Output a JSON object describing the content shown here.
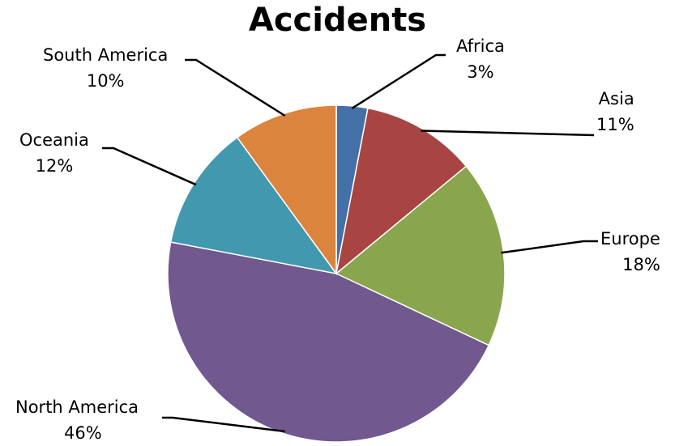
{
  "chart_data": {
    "type": "pie",
    "title": "Accidents",
    "slices": [
      {
        "label": "Africa",
        "value": 3,
        "value_label": "3%",
        "color": "#4470A8"
      },
      {
        "label": "Asia",
        "value": 11,
        "value_label": "11%",
        "color": "#A84442"
      },
      {
        "label": "Europe",
        "value": 18,
        "value_label": "18%",
        "color": "#89A54E"
      },
      {
        "label": "North America",
        "value": 46,
        "value_label": "46%",
        "color": "#71588F"
      },
      {
        "label": "Oceania",
        "value": 12,
        "value_label": "12%",
        "color": "#4198AF"
      },
      {
        "label": "South America",
        "value": 10,
        "value_label": "10%",
        "color": "#DB843D"
      }
    ],
    "legend": "none",
    "labels": "outside-with-leader-lines"
  }
}
